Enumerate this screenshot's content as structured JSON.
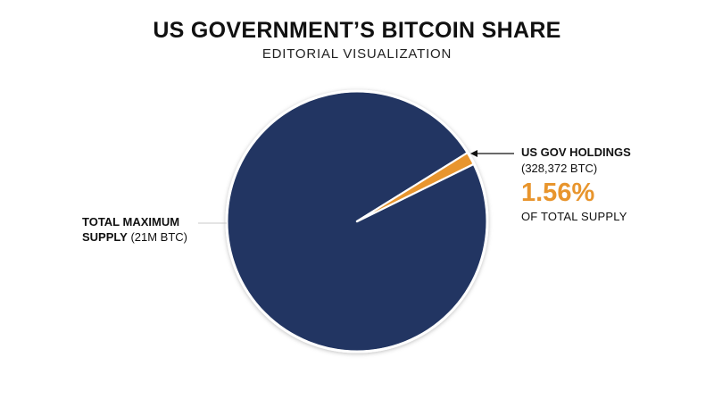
{
  "title": "US GOVERNMENT’S BITCOIN SHARE",
  "subtitle": "EDITORIAL VISUALIZATION",
  "colors": {
    "total": "#223662",
    "gov": "#e8952d",
    "background": "#ffffff"
  },
  "labels": {
    "total_name": "TOTAL MAXIMUM",
    "total_name_2": "SUPPLY",
    "total_detail": "(21M BTC)",
    "gov_name": "US GOV HOLDINGS",
    "gov_detail": "(328,372 BTC)",
    "gov_percent": "1.56%",
    "gov_percent_caption": "OF TOTAL SUPPLY"
  },
  "chart_data": {
    "type": "pie",
    "title": "US GOVERNMENT’S BITCOIN SHARE",
    "subtitle": "EDITORIAL VISUALIZATION",
    "slices": [
      {
        "label": "TOTAL MAXIMUM SUPPLY (21M BTC)",
        "value": 20671628,
        "percent": 98.44
      },
      {
        "label": "US GOV HOLDINGS (328,372 BTC)",
        "value": 328372,
        "percent": 1.56
      }
    ],
    "total": 21000000
  }
}
